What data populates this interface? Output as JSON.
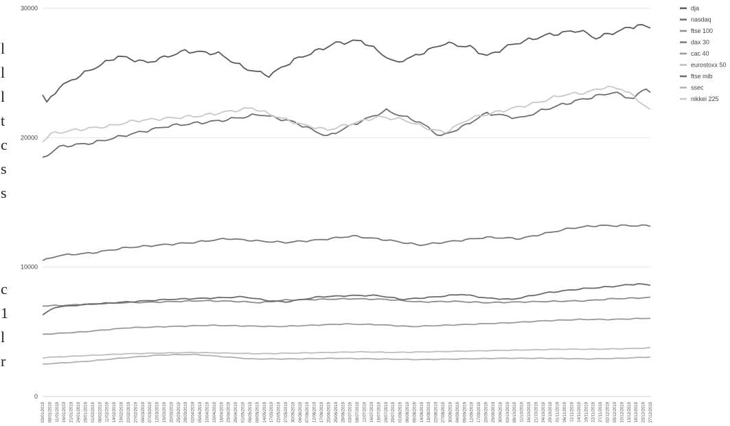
{
  "chart_data": {
    "type": "line",
    "ylim": [
      0,
      30000
    ],
    "yticks": [
      "0",
      "10000",
      "20000",
      "30000"
    ],
    "grid": true,
    "legend_placement": "right",
    "x": [
      "03/01/2019",
      "08/01/2019",
      "11/01/2019",
      "16/01/2019",
      "21/01/2019",
      "24/01/2019",
      "29/01/2019",
      "01/02/2019",
      "06/02/2019",
      "11/02/2019",
      "14/02/2019",
      "19/02/2019",
      "22/02/2019",
      "27/02/2019",
      "04/03/2019",
      "07/03/2019",
      "12/03/2019",
      "15/03/2019",
      "20/03/2019",
      "25/03/2019",
      "28/03/2019",
      "02/04/2019",
      "05/04/2019",
      "10/04/2019",
      "15/04/2019",
      "18/04/2019",
      "23/04/2019",
      "26/04/2019",
      "01/05/2019",
      "06/05/2019",
      "09/05/2019",
      "14/05/2019",
      "17/05/2019",
      "22/05/2019",
      "27/05/2019",
      "30/05/2019",
      "04/06/2019",
      "07/06/2019",
      "12/06/2019",
      "17/06/2019",
      "20/06/2019",
      "25/06/2019",
      "28/06/2019",
      "03/07/2019",
      "08/07/2019",
      "11/07/2019",
      "16/07/2019",
      "19/07/2019",
      "24/07/2019",
      "29/07/2019",
      "01/08/2019",
      "06/08/2019",
      "09/08/2019",
      "14/08/2019",
      "19/08/2019",
      "22/08/2019",
      "27/08/2019",
      "30/08/2019",
      "04/09/2019",
      "09/09/2019",
      "12/09/2019",
      "17/09/2019",
      "20/09/2019",
      "25/09/2019",
      "30/09/2019",
      "03/10/2019",
      "08/10/2019",
      "11/10/2019",
      "16/10/2019",
      "21/10/2019",
      "24/10/2019",
      "29/10/2019",
      "01/11/2019",
      "06/11/2019",
      "11/11/2019",
      "14/11/2019",
      "19/11/2019",
      "22/11/2019",
      "27/11/2019",
      "02/12/2019",
      "05/12/2019",
      "10/12/2019",
      "13/12/2019",
      "18/12/2019",
      "23/12/2019",
      "27/12/2019"
    ],
    "series": [
      {
        "name": "dja",
        "color": "#5a5a5a",
        "anchors": [
          [
            0,
            23300
          ],
          [
            1,
            22700
          ],
          [
            4,
            23900
          ],
          [
            10,
            25000
          ],
          [
            18,
            26300
          ],
          [
            25,
            25800
          ],
          [
            34,
            26700
          ],
          [
            42,
            26500
          ],
          [
            48,
            25400
          ],
          [
            54,
            24800
          ],
          [
            60,
            26000
          ],
          [
            70,
            27300
          ],
          [
            76,
            27500
          ],
          [
            80,
            26700
          ],
          [
            84,
            25800
          ],
          [
            88,
            26200
          ],
          [
            96,
            27300
          ],
          [
            102,
            27000
          ],
          [
            106,
            26300
          ],
          [
            112,
            27200
          ],
          [
            120,
            27900
          ],
          [
            128,
            28300
          ],
          [
            132,
            27700
          ],
          [
            136,
            28100
          ],
          [
            142,
            28700
          ],
          [
            145,
            28500
          ]
        ]
      },
      {
        "name": "nasdaq",
        "color": "#6e6e6e",
        "anchors": [
          [
            0,
            18400
          ],
          [
            4,
            19300
          ],
          [
            12,
            19600
          ],
          [
            20,
            20200
          ],
          [
            30,
            20900
          ],
          [
            42,
            21300
          ],
          [
            52,
            21800
          ],
          [
            60,
            21200
          ],
          [
            68,
            20100
          ],
          [
            74,
            21000
          ],
          [
            82,
            22100
          ],
          [
            90,
            21200
          ],
          [
            95,
            20100
          ],
          [
            100,
            20800
          ],
          [
            106,
            21900
          ],
          [
            114,
            21500
          ],
          [
            120,
            22200
          ],
          [
            128,
            22900
          ],
          [
            136,
            23500
          ],
          [
            141,
            23000
          ],
          [
            144,
            23900
          ],
          [
            145,
            23500
          ]
        ]
      },
      {
        "name": "ftse 100",
        "color": "#8c8c8c",
        "anchors": [
          [
            0,
            7000
          ],
          [
            6,
            7050
          ],
          [
            12,
            7150
          ],
          [
            20,
            7250
          ],
          [
            28,
            7300
          ],
          [
            38,
            7400
          ],
          [
            46,
            7350
          ],
          [
            52,
            7250
          ],
          [
            58,
            7450
          ],
          [
            66,
            7500
          ],
          [
            74,
            7550
          ],
          [
            82,
            7500
          ],
          [
            90,
            7300
          ],
          [
            98,
            7350
          ],
          [
            106,
            7250
          ],
          [
            114,
            7300
          ],
          [
            122,
            7350
          ],
          [
            130,
            7400
          ],
          [
            136,
            7550
          ],
          [
            141,
            7600
          ],
          [
            145,
            7650
          ]
        ]
      },
      {
        "name": "dax 30",
        "color": "#787878",
        "anchors": [
          [
            0,
            10500
          ],
          [
            4,
            10900
          ],
          [
            12,
            11100
          ],
          [
            20,
            11500
          ],
          [
            28,
            11700
          ],
          [
            36,
            11900
          ],
          [
            44,
            12200
          ],
          [
            52,
            12000
          ],
          [
            58,
            11900
          ],
          [
            66,
            12100
          ],
          [
            74,
            12400
          ],
          [
            82,
            12100
          ],
          [
            90,
            11700
          ],
          [
            98,
            12000
          ],
          [
            106,
            12300
          ],
          [
            114,
            12200
          ],
          [
            120,
            12600
          ],
          [
            126,
            13000
          ],
          [
            132,
            13200
          ],
          [
            140,
            13200
          ],
          [
            145,
            13200
          ]
        ]
      },
      {
        "name": "cac 40",
        "color": "#9a9a9a",
        "anchors": [
          [
            0,
            4800
          ],
          [
            10,
            5000
          ],
          [
            20,
            5300
          ],
          [
            30,
            5400
          ],
          [
            40,
            5500
          ],
          [
            48,
            5450
          ],
          [
            56,
            5400
          ],
          [
            64,
            5500
          ],
          [
            72,
            5600
          ],
          [
            80,
            5550
          ],
          [
            88,
            5400
          ],
          [
            96,
            5500
          ],
          [
            104,
            5600
          ],
          [
            112,
            5700
          ],
          [
            120,
            5850
          ],
          [
            128,
            5950
          ],
          [
            136,
            5950
          ],
          [
            145,
            6050
          ]
        ]
      },
      {
        "name": "eurostoxx 50",
        "color": "#bdbdbd",
        "anchors": [
          [
            0,
            3000
          ],
          [
            10,
            3150
          ],
          [
            20,
            3300
          ],
          [
            28,
            3350
          ],
          [
            36,
            3400
          ],
          [
            44,
            3350
          ],
          [
            52,
            3300
          ],
          [
            60,
            3350
          ],
          [
            68,
            3400
          ],
          [
            76,
            3450
          ],
          [
            84,
            3400
          ],
          [
            92,
            3450
          ],
          [
            100,
            3500
          ],
          [
            108,
            3550
          ],
          [
            116,
            3600
          ],
          [
            124,
            3650
          ],
          [
            132,
            3650
          ],
          [
            140,
            3700
          ],
          [
            145,
            3750
          ]
        ]
      },
      {
        "name": "ftse mib",
        "color": "#6a6a6a",
        "anchors": [
          [
            0,
            6300
          ],
          [
            3,
            6900
          ],
          [
            10,
            7100
          ],
          [
            20,
            7300
          ],
          [
            30,
            7500
          ],
          [
            40,
            7600
          ],
          [
            48,
            7700
          ],
          [
            54,
            7400
          ],
          [
            58,
            7300
          ],
          [
            66,
            7700
          ],
          [
            74,
            7800
          ],
          [
            80,
            7800
          ],
          [
            86,
            7500
          ],
          [
            94,
            7700
          ],
          [
            100,
            7900
          ],
          [
            106,
            7600
          ],
          [
            112,
            7500
          ],
          [
            120,
            8000
          ],
          [
            128,
            8300
          ],
          [
            136,
            8500
          ],
          [
            142,
            8700
          ],
          [
            145,
            8600
          ]
        ]
      },
      {
        "name": "ssec",
        "color": "#b0b0b0",
        "anchors": [
          [
            0,
            2500
          ],
          [
            10,
            2700
          ],
          [
            20,
            3000
          ],
          [
            28,
            3200
          ],
          [
            36,
            3250
          ],
          [
            42,
            3100
          ],
          [
            50,
            2900
          ],
          [
            60,
            2900
          ],
          [
            70,
            2950
          ],
          [
            80,
            2900
          ],
          [
            90,
            2850
          ],
          [
            100,
            2900
          ],
          [
            110,
            2950
          ],
          [
            120,
            2950
          ],
          [
            130,
            2900
          ],
          [
            138,
            2950
          ],
          [
            145,
            3050
          ]
        ]
      },
      {
        "name": "nikkei 225",
        "color": "#c8c8c8",
        "anchors": [
          [
            0,
            19700
          ],
          [
            2,
            20300
          ],
          [
            8,
            20600
          ],
          [
            16,
            20900
          ],
          [
            22,
            21300
          ],
          [
            30,
            21500
          ],
          [
            38,
            21700
          ],
          [
            46,
            22100
          ],
          [
            50,
            22300
          ],
          [
            56,
            21600
          ],
          [
            62,
            21000
          ],
          [
            68,
            20600
          ],
          [
            74,
            21100
          ],
          [
            80,
            21600
          ],
          [
            86,
            21400
          ],
          [
            92,
            20700
          ],
          [
            96,
            20400
          ],
          [
            102,
            21500
          ],
          [
            110,
            22100
          ],
          [
            118,
            22700
          ],
          [
            124,
            23300
          ],
          [
            130,
            23500
          ],
          [
            134,
            23900
          ],
          [
            138,
            23800
          ],
          [
            141,
            23200
          ],
          [
            145,
            22100
          ]
        ]
      }
    ]
  },
  "clipped_left_text": [
    "l",
    "l",
    "l",
    "t",
    "c",
    "s",
    "s",
    "c",
    "1",
    "l",
    "r"
  ]
}
